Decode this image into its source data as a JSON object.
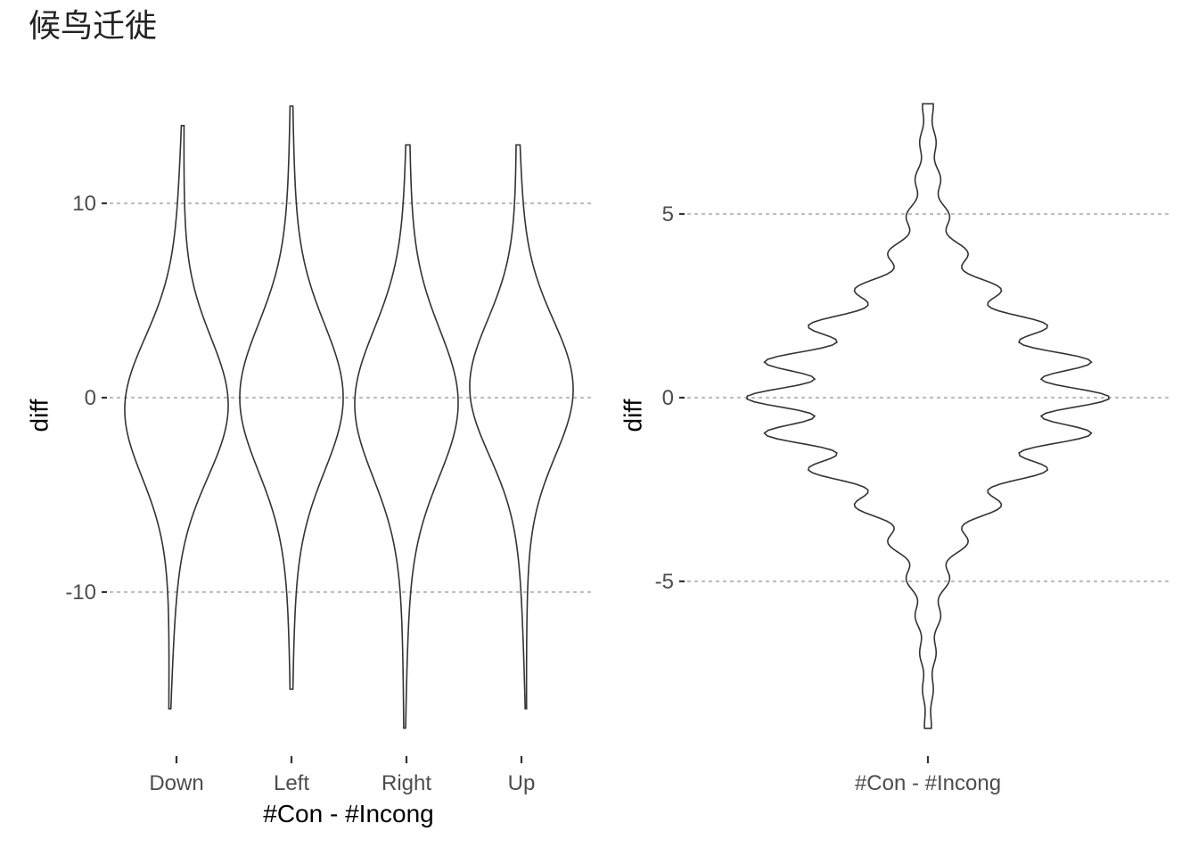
{
  "title": "候鸟迁徙",
  "chart_data": [
    {
      "type": "violin",
      "xlabel": "#Con - #Incong",
      "ylabel": "diff",
      "categories": [
        "Down",
        "Left",
        "Right",
        "Up"
      ],
      "yticks": [
        10,
        0,
        -10
      ],
      "ytick_labels": [
        "10",
        "0",
        "-10"
      ],
      "ylim": [
        -18,
        15.5
      ],
      "grid": "horizontal-major-dotted",
      "violins": [
        {
          "category": "Down",
          "min": -16,
          "max": 14,
          "center": -0.5,
          "spread": 3.5,
          "skew": 0.8
        },
        {
          "category": "Left",
          "min": -15,
          "max": 15,
          "center": 0.0,
          "spread": 3.7,
          "skew": 0.0
        },
        {
          "category": "Right",
          "min": -17,
          "max": 13,
          "center": -0.3,
          "spread": 3.7,
          "skew": 0.2
        },
        {
          "category": "Up",
          "min": -16,
          "max": 13,
          "center": 0.5,
          "spread": 3.4,
          "skew": -0.5
        }
      ]
    },
    {
      "type": "violin",
      "xlabel": "",
      "ylabel": "diff",
      "categories": [
        "#Con - #Incong"
      ],
      "yticks": [
        5,
        0,
        -5
      ],
      "ytick_labels": [
        "5",
        "0",
        "-5"
      ],
      "ylim": [
        -8.5,
        8.0
      ],
      "grid": "horizontal-major-dotted",
      "violins": [
        {
          "category": "#Con - #Incong",
          "min": -9,
          "max": 8,
          "center": 0.0,
          "spread": 2.0,
          "ripple_period": 1.0
        }
      ]
    }
  ]
}
